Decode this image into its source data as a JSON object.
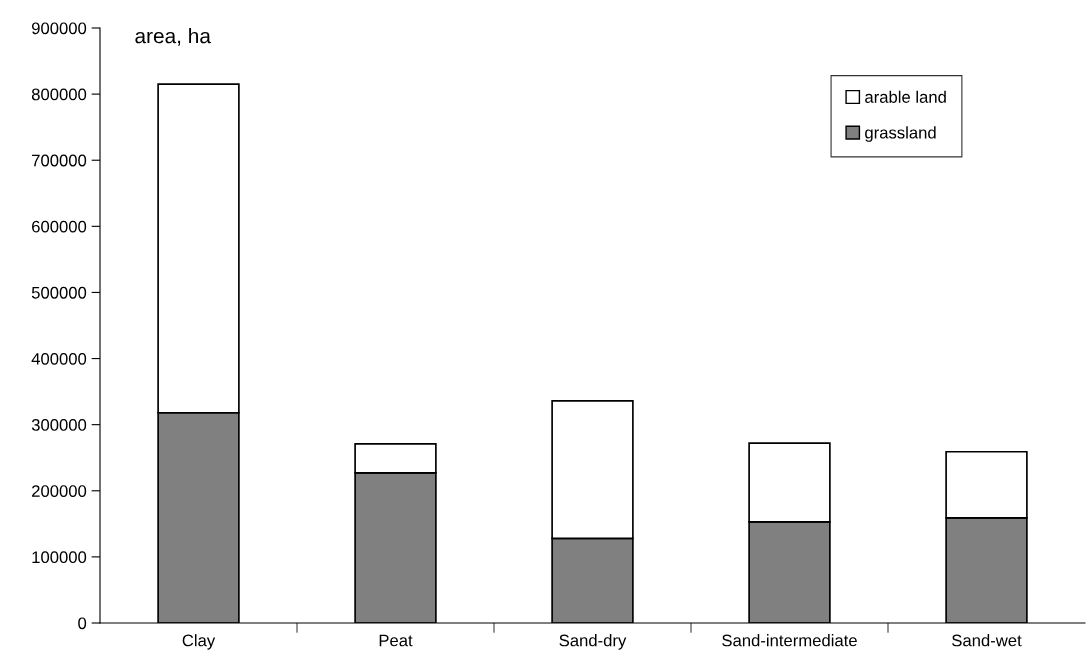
{
  "chart_data": {
    "type": "bar",
    "stacked": true,
    "ylabel": "area, ha",
    "categories": [
      "Clay",
      "Peat",
      "Sand-dry",
      "Sand-intermediate",
      "Sand-wet"
    ],
    "series": [
      {
        "name": "grassland",
        "color": "#808080",
        "values": [
          318000,
          227000,
          128000,
          153000,
          159000
        ]
      },
      {
        "name": "arable land",
        "color": "#ffffff",
        "values": [
          497000,
          44000,
          208000,
          119000,
          100000
        ]
      }
    ],
    "ylim": [
      0,
      900000
    ],
    "yticks": [
      0,
      100000,
      200000,
      300000,
      400000,
      500000,
      600000,
      700000,
      800000,
      900000
    ],
    "grid": false,
    "legend": "top right"
  }
}
